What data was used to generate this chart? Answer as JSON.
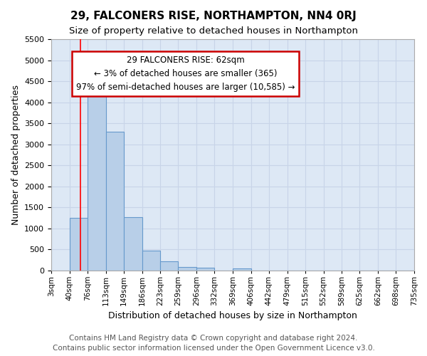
{
  "title": "29, FALCONERS RISE, NORTHAMPTON, NN4 0RJ",
  "subtitle": "Size of property relative to detached houses in Northampton",
  "xlabel": "Distribution of detached houses by size in Northampton",
  "ylabel": "Number of detached properties",
  "footer_line1": "Contains HM Land Registry data © Crown copyright and database right 2024.",
  "footer_line2": "Contains public sector information licensed under the Open Government Licence v3.0.",
  "bin_labels": [
    "3sqm",
    "40sqm",
    "76sqm",
    "113sqm",
    "149sqm",
    "186sqm",
    "223sqm",
    "259sqm",
    "296sqm",
    "332sqm",
    "369sqm",
    "406sqm",
    "442sqm",
    "479sqm",
    "515sqm",
    "552sqm",
    "589sqm",
    "625sqm",
    "662sqm",
    "698sqm",
    "735sqm"
  ],
  "bin_edges": [
    3,
    40,
    76,
    113,
    149,
    186,
    223,
    259,
    296,
    332,
    369,
    406,
    442,
    479,
    515,
    552,
    589,
    625,
    662,
    698,
    735
  ],
  "bar_values": [
    0,
    1260,
    4350,
    3300,
    1270,
    480,
    220,
    90,
    70,
    0,
    50,
    0,
    0,
    0,
    0,
    0,
    0,
    0,
    0,
    0
  ],
  "bar_color": "#b8cfe8",
  "bar_edge_color": "#6699cc",
  "grid_color": "#c8d4e8",
  "plot_bg_color": "#dde8f5",
  "fig_bg_color": "#ffffff",
  "ylim": [
    0,
    5500
  ],
  "yticks": [
    0,
    500,
    1000,
    1500,
    2000,
    2500,
    3000,
    3500,
    4000,
    4500,
    5000,
    5500
  ],
  "red_line_x": 62,
  "annotation_line1": "29 FALCONERS RISE: 62sqm",
  "annotation_line2": "← 3% of detached houses are smaller (365)",
  "annotation_line3": "97% of semi-detached houses are larger (10,585) →",
  "annotation_box_color": "#ffffff",
  "annotation_border_color": "#cc0000",
  "title_fontsize": 11,
  "subtitle_fontsize": 9.5,
  "axis_label_fontsize": 9,
  "tick_fontsize": 8,
  "annot_fontsize": 8.5,
  "footer_fontsize": 7.5
}
